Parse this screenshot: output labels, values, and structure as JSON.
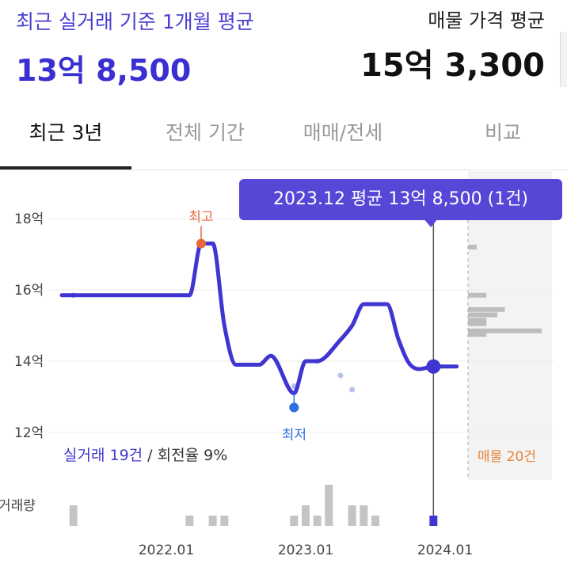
{
  "header": {
    "left_title": "최근 실거래 기준 1개월 평균",
    "left_price": "13억 8,500",
    "right_title": "매물 가격 평균",
    "right_price": "15억 3,300"
  },
  "tabs": [
    {
      "label": "최근 3년",
      "active": true
    },
    {
      "label": "전체 기간",
      "active": false
    },
    {
      "label": "매매/전세",
      "active": false
    },
    {
      "label": "비교",
      "active": false
    }
  ],
  "tooltip": {
    "text": "2023.12 평균 13억 8,500 (1건)"
  },
  "summary": {
    "trade_label": "실거래 19건",
    "separator": " / ",
    "turnover_label": "회전율 9%"
  },
  "listing_label": "매물 20건",
  "colors": {
    "accent": "#3f35d0",
    "tooltip_bg": "#5747d6",
    "max_marker": "#e8663a",
    "min_marker": "#2f6fe0",
    "listing_text": "#e8833a",
    "volume_bar": "#c4c4c4",
    "scatter_dot": "#b7c3ee"
  },
  "chart_data": {
    "type": "line",
    "y_axis": {
      "ticks": [
        "12억",
        "14억",
        "16억",
        "18억"
      ],
      "values": [
        12,
        14,
        16,
        18
      ],
      "ylim": [
        12,
        18
      ]
    },
    "x_axis": {
      "ticks": [
        "2022.01",
        "2023.01",
        "2024.01"
      ],
      "range": [
        "2021.04",
        "2024.02"
      ]
    },
    "series": [
      {
        "points": [
          {
            "x": "2021.04",
            "y": 15.85
          },
          {
            "x": "2021.05",
            "y": 15.85
          },
          {
            "x": "2021.07",
            "y": 15.85
          },
          {
            "x": "2021.10",
            "y": 15.85
          },
          {
            "x": "2022.01",
            "y": 15.85
          },
          {
            "x": "2022.03",
            "y": 15.85
          },
          {
            "x": "2022.04",
            "y": 17.3
          },
          {
            "x": "2022.05",
            "y": 17.3
          },
          {
            "x": "2022.06",
            "y": 15.0
          },
          {
            "x": "2022.07",
            "y": 13.9
          },
          {
            "x": "2022.09",
            "y": 13.9
          },
          {
            "x": "2022.10",
            "y": 14.15
          },
          {
            "x": "2022.12",
            "y": 13.1
          },
          {
            "x": "2023.01",
            "y": 14.0
          },
          {
            "x": "2023.02",
            "y": 14.0
          },
          {
            "x": "2023.04",
            "y": 14.6
          },
          {
            "x": "2023.05",
            "y": 15.0
          },
          {
            "x": "2023.06",
            "y": 15.6
          },
          {
            "x": "2023.08",
            "y": 15.6
          },
          {
            "x": "2023.09",
            "y": 14.6
          },
          {
            "x": "2023.10",
            "y": 13.9
          },
          {
            "x": "2023.12",
            "y": 13.85
          },
          {
            "x": "2024.02",
            "y": 13.85
          }
        ]
      }
    ],
    "scatter_points": [
      {
        "x": "2021.05",
        "y": 15.85
      },
      {
        "x": "2022.12",
        "y": 13.3
      },
      {
        "x": "2023.02",
        "y": 14.0
      },
      {
        "x": "2023.04",
        "y": 13.6
      },
      {
        "x": "2023.05",
        "y": 13.2
      }
    ],
    "max_marker": {
      "label": "최고",
      "x": "2022.04",
      "y": 17.3
    },
    "min_marker": {
      "label": "최저",
      "x": "2022.12",
      "y": 12.7
    },
    "selected": {
      "x": "2023.12",
      "y": 13.85
    },
    "listing_bars": [
      {
        "y": 17.2,
        "length": 0.12
      },
      {
        "y": 15.85,
        "length": 0.25
      },
      {
        "y": 15.45,
        "length": 0.5
      },
      {
        "y": 15.3,
        "length": 0.4
      },
      {
        "y": 15.15,
        "length": 0.25
      },
      {
        "y": 15.05,
        "length": 0.25
      },
      {
        "y": 14.85,
        "length": 1.0
      },
      {
        "y": 14.75,
        "length": 0.25
      }
    ],
    "volume_label": "거래량",
    "volume": [
      {
        "x": "2021.05",
        "count": 2
      },
      {
        "x": "2022.03",
        "count": 1
      },
      {
        "x": "2022.05",
        "count": 1
      },
      {
        "x": "2022.06",
        "count": 1
      },
      {
        "x": "2022.12",
        "count": 1
      },
      {
        "x": "2023.01",
        "count": 2
      },
      {
        "x": "2023.02",
        "count": 1
      },
      {
        "x": "2023.03",
        "count": 4
      },
      {
        "x": "2023.05",
        "count": 2
      },
      {
        "x": "2023.06",
        "count": 2
      },
      {
        "x": "2023.07",
        "count": 1
      },
      {
        "x": "2023.12",
        "count": 1,
        "selected": true
      }
    ]
  }
}
